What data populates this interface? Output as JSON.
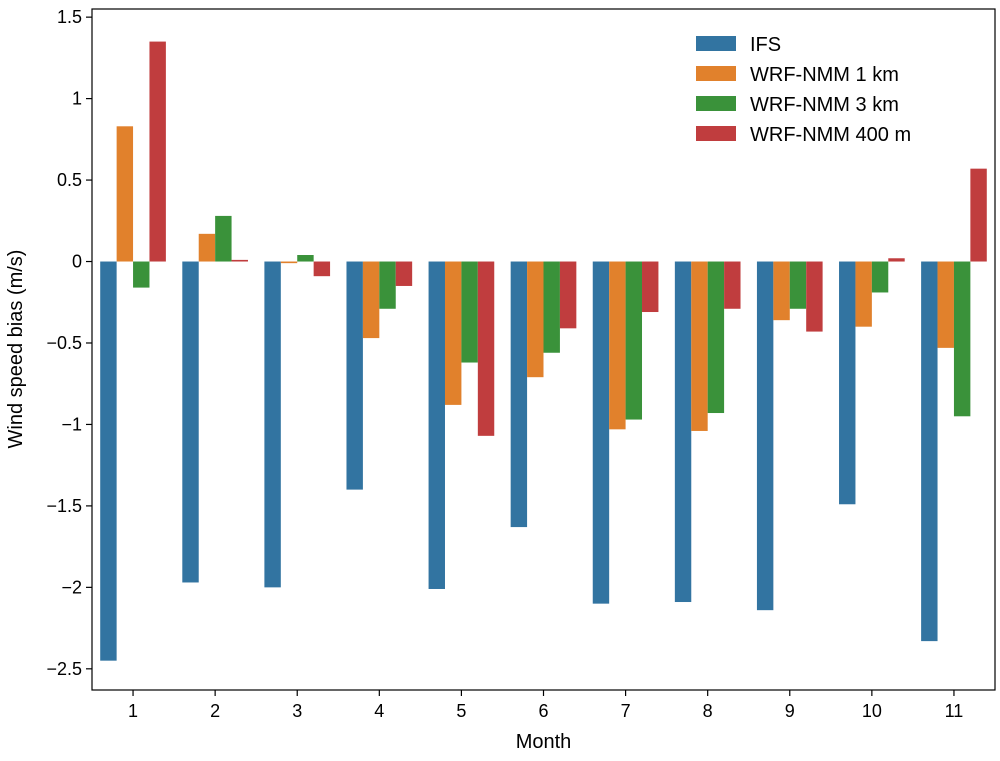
{
  "chart_data": {
    "type": "bar",
    "title": "",
    "xlabel": "Month",
    "ylabel": "Wind speed bias (m/s)",
    "ylim": [
      -2.63,
      1.55
    ],
    "yticks": [
      -2.5,
      -2,
      -1.5,
      -1,
      -0.5,
      0,
      0.5,
      1,
      1.5
    ],
    "ytick_labels": [
      "−2.5",
      "−2",
      "−1.5",
      "−1",
      "−0.5",
      "0",
      "0.5",
      "1",
      "1.5"
    ],
    "categories": [
      "1",
      "2",
      "3",
      "4",
      "5",
      "6",
      "7",
      "8",
      "9",
      "10",
      "11"
    ],
    "legend_position": "top-right",
    "series": [
      {
        "name": "IFS",
        "color": "#3274a1",
        "values": [
          -2.45,
          -1.97,
          -2.0,
          -1.4,
          -2.01,
          -1.63,
          -2.1,
          -2.09,
          -2.14,
          -1.49,
          -2.33
        ]
      },
      {
        "name": "WRF-NMM 1 km",
        "color": "#e1812c",
        "values": [
          0.83,
          0.17,
          -0.01,
          -0.47,
          -0.88,
          -0.71,
          -1.03,
          -1.04,
          -0.36,
          -0.4,
          -0.53
        ]
      },
      {
        "name": "WRF-NMM 3 km",
        "color": "#3a923a",
        "values": [
          -0.16,
          0.28,
          0.04,
          -0.29,
          -0.62,
          -0.56,
          -0.97,
          -0.93,
          -0.29,
          -0.19,
          -0.95
        ]
      },
      {
        "name": "WRF-NMM 400 m",
        "color": "#c03d3e",
        "values": [
          1.35,
          0.01,
          -0.09,
          -0.15,
          -1.07,
          -0.41,
          -0.31,
          -0.29,
          -0.43,
          0.02,
          0.57
        ]
      }
    ]
  }
}
